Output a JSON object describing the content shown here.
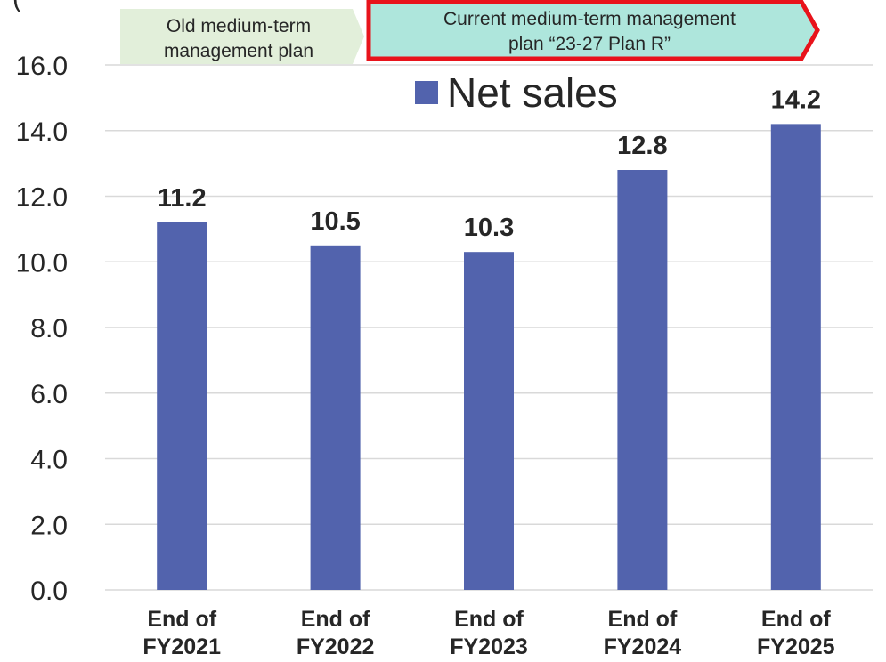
{
  "banners": {
    "old_line1": "Old medium-term",
    "old_line2": "management plan",
    "current_line1": "Current medium-term management",
    "current_line2": "plan “23-27 Plan R”"
  },
  "colors": {
    "bar": "#5263ad",
    "grid": "#d9d9d9",
    "old_banner_fill": "#e2efda",
    "current_banner_fill": "#aee6dc",
    "current_banner_border": "#e8131b",
    "text": "#262626"
  },
  "chart_data": {
    "type": "bar",
    "categories": [
      [
        "End of",
        "FY2021"
      ],
      [
        "End of",
        "FY2022"
      ],
      [
        "End of",
        "FY2023"
      ],
      [
        "End of",
        "FY2024"
      ],
      [
        "End of",
        "FY2025"
      ]
    ],
    "series": [
      {
        "name": "Net sales",
        "values": [
          11.2,
          10.5,
          10.3,
          12.8,
          14.2
        ]
      }
    ],
    "data_labels": [
      "11.2",
      "10.5",
      "10.3",
      "12.8",
      "14.2"
    ],
    "ylim": [
      0,
      16
    ],
    "yticks": [
      "0.0",
      "2.0",
      "4.0",
      "6.0",
      "8.0",
      "10.0",
      "12.0",
      "14.0",
      "16.0"
    ],
    "ylabel_partial": "(",
    "grid": true,
    "legend": "top-right"
  }
}
